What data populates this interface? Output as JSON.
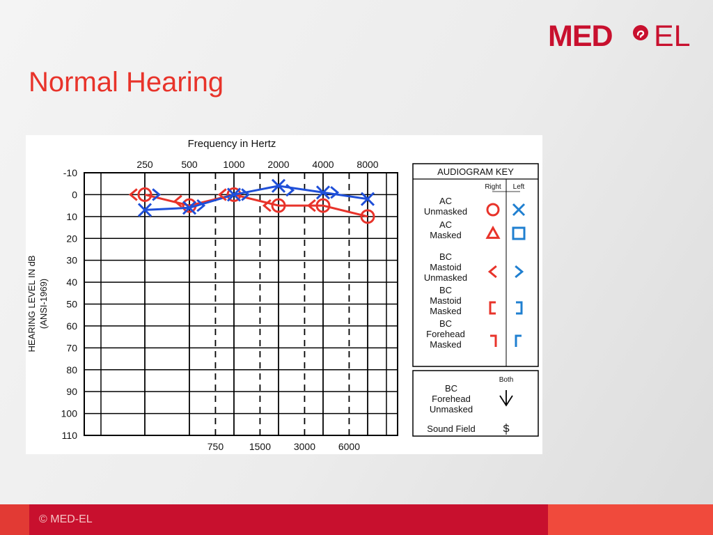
{
  "logo": {
    "text_left": "MED",
    "text_right": "EL",
    "color": "#c8102e"
  },
  "page_title": "Normal Hearing",
  "footer": {
    "copyright": "© MED-EL"
  },
  "chart_data": {
    "type": "line",
    "title": "Frequency in Hertz",
    "xlabel": "Frequency in Hertz",
    "ylabel": "HEARING LEVEL IN dB",
    "ylabel2": "(ANSI-1969)",
    "x_top_ticks": [
      "250",
      "500",
      "1000",
      "2000",
      "4000",
      "8000"
    ],
    "x_bottom_ticks": [
      "750",
      "1500",
      "3000",
      "6000"
    ],
    "y_ticks": [
      "-10",
      "0",
      "10",
      "20",
      "30",
      "40",
      "50",
      "60",
      "70",
      "80",
      "90",
      "100",
      "110"
    ],
    "ylim": [
      -10,
      110
    ],
    "y_inverted": true,
    "x_scale": "log2",
    "series": [
      {
        "symbol": "AC Unmasked Right (circle)",
        "color": "#e8332a",
        "points": [
          {
            "freq": 250,
            "db": 0
          },
          {
            "freq": 500,
            "db": 5
          },
          {
            "freq": 1000,
            "db": 0
          },
          {
            "freq": 2000,
            "db": 5
          },
          {
            "freq": 4000,
            "db": 5
          },
          {
            "freq": 8000,
            "db": 10
          }
        ]
      },
      {
        "symbol": "AC Unmasked Left (x)",
        "color": "#1f4fd8",
        "points": [
          {
            "freq": 250,
            "db": 7
          },
          {
            "freq": 500,
            "db": 6
          },
          {
            "freq": 1000,
            "db": 0
          },
          {
            "freq": 2000,
            "db": -4
          },
          {
            "freq": 4000,
            "db": -1
          },
          {
            "freq": 8000,
            "db": 2
          }
        ]
      },
      {
        "symbol": "BC Mastoid Unmasked Right (<)",
        "color": "#e8332a",
        "points": [
          {
            "freq": 250,
            "db": 0
          },
          {
            "freq": 500,
            "db": 3
          },
          {
            "freq": 1000,
            "db": 0
          },
          {
            "freq": 2000,
            "db": 5
          },
          {
            "freq": 4000,
            "db": 5
          }
        ]
      },
      {
        "symbol": "BC Mastoid Unmasked Left (>)",
        "color": "#1f4fd8",
        "points": [
          {
            "freq": 250,
            "db": 0
          },
          {
            "freq": 500,
            "db": 5
          },
          {
            "freq": 1000,
            "db": 0
          },
          {
            "freq": 2000,
            "db": -2
          },
          {
            "freq": 4000,
            "db": -1
          }
        ]
      }
    ],
    "key": {
      "title": "AUDIOGRAM KEY",
      "col_right": "Right",
      "col_left": "Left",
      "rows": [
        {
          "label": [
            "AC",
            "Unmasked"
          ],
          "right": "circle",
          "left": "x"
        },
        {
          "label": [
            "AC",
            "Masked"
          ],
          "right": "triangle",
          "left": "square"
        },
        {
          "label": [
            "BC",
            "Mastoid",
            "Unmasked"
          ],
          "right": "lt",
          "left": "gt"
        },
        {
          "label": [
            "BC",
            "Mastoid",
            "Masked"
          ],
          "right": "lbracket",
          "left": "rbracket"
        },
        {
          "label": [
            "BC",
            "Forehead",
            "Masked"
          ],
          "right": "rflag",
          "left": "lflag"
        }
      ],
      "both_title": "Both",
      "both_label": [
        "BC",
        "Forehead",
        "Unmasked"
      ],
      "sound_field_label": "Sound Field",
      "sound_field_symbol": "S",
      "right_color": "#e8332a",
      "left_color": "#1f7fd0"
    }
  }
}
